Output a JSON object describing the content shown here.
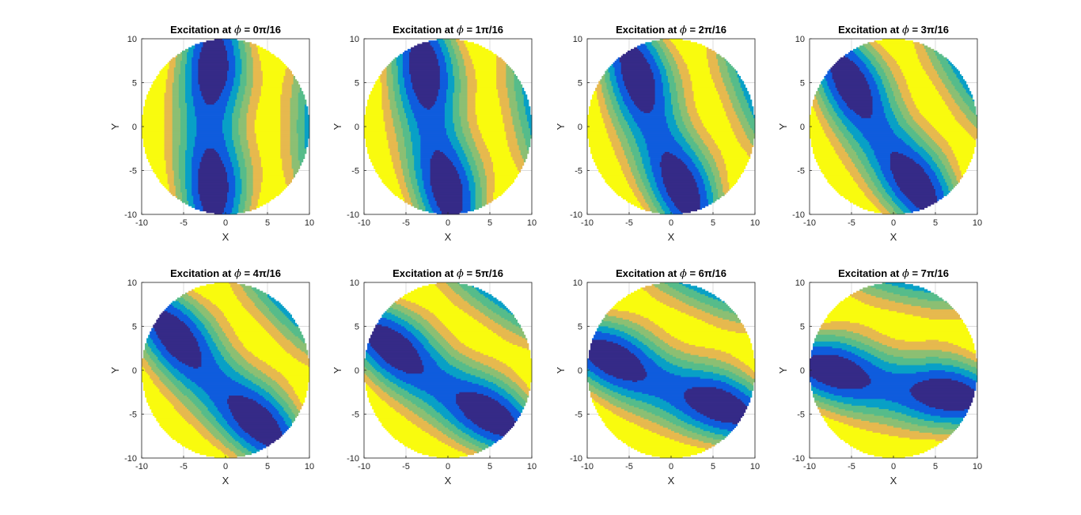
{
  "figure": {
    "rows": 2,
    "cols": 4
  },
  "chart_data": [
    {
      "type": "heatmap",
      "title_prefix": "Excitation at ",
      "title_symbol": "ϕ",
      "title_suffix": " = 0π/16",
      "phase_index": 0,
      "xlabel": "X",
      "ylabel": "Y",
      "xlim": [
        -10,
        10
      ],
      "ylim": [
        -10,
        10
      ],
      "xticks": [
        "-10",
        "-5",
        "0",
        "5",
        "10"
      ],
      "yticks": [
        "10",
        "5",
        "0",
        "-5",
        "-10"
      ],
      "grid": true,
      "disk_radius": 10
    },
    {
      "type": "heatmap",
      "title_prefix": "Excitation at ",
      "title_symbol": "ϕ",
      "title_suffix": " = 1π/16",
      "phase_index": 1,
      "xlabel": "X",
      "ylabel": "Y",
      "xlim": [
        -10,
        10
      ],
      "ylim": [
        -10,
        10
      ],
      "xticks": [
        "-10",
        "-5",
        "0",
        "5",
        "10"
      ],
      "yticks": [
        "10",
        "5",
        "0",
        "-5",
        "-10"
      ],
      "grid": true,
      "disk_radius": 10
    },
    {
      "type": "heatmap",
      "title_prefix": "Excitation at ",
      "title_symbol": "ϕ",
      "title_suffix": " = 2π/16",
      "phase_index": 2,
      "xlabel": "X",
      "ylabel": "Y",
      "xlim": [
        -10,
        10
      ],
      "ylim": [
        -10,
        10
      ],
      "xticks": [
        "-10",
        "-5",
        "0",
        "5",
        "10"
      ],
      "yticks": [
        "10",
        "5",
        "0",
        "-5",
        "-10"
      ],
      "grid": true,
      "disk_radius": 10
    },
    {
      "type": "heatmap",
      "title_prefix": "Excitation at ",
      "title_symbol": "ϕ",
      "title_suffix": " = 3π/16",
      "phase_index": 3,
      "xlabel": "X",
      "ylabel": "Y",
      "xlim": [
        -10,
        10
      ],
      "ylim": [
        -10,
        10
      ],
      "xticks": [
        "-10",
        "-5",
        "0",
        "5",
        "10"
      ],
      "yticks": [
        "10",
        "5",
        "0",
        "-5",
        "-10"
      ],
      "grid": true,
      "disk_radius": 10
    },
    {
      "type": "heatmap",
      "title_prefix": "Excitation at ",
      "title_symbol": "ϕ",
      "title_suffix": " = 4π/16",
      "phase_index": 4,
      "xlabel": "X",
      "ylabel": "Y",
      "xlim": [
        -10,
        10
      ],
      "ylim": [
        -10,
        10
      ],
      "xticks": [
        "-10",
        "-5",
        "0",
        "5",
        "10"
      ],
      "yticks": [
        "10",
        "5",
        "0",
        "-5",
        "-10"
      ],
      "grid": true,
      "disk_radius": 10
    },
    {
      "type": "heatmap",
      "title_prefix": "Excitation at ",
      "title_symbol": "ϕ",
      "title_suffix": " = 5π/16",
      "phase_index": 5,
      "xlabel": "X",
      "ylabel": "Y",
      "xlim": [
        -10,
        10
      ],
      "ylim": [
        -10,
        10
      ],
      "xticks": [
        "-10",
        "-5",
        "0",
        "5",
        "10"
      ],
      "yticks": [
        "10",
        "5",
        "0",
        "-5",
        "-10"
      ],
      "grid": true,
      "disk_radius": 10
    },
    {
      "type": "heatmap",
      "title_prefix": "Excitation at ",
      "title_symbol": "ϕ",
      "title_suffix": " = 6π/16",
      "phase_index": 6,
      "xlabel": "X",
      "ylabel": "Y",
      "xlim": [
        -10,
        10
      ],
      "ylim": [
        -10,
        10
      ],
      "xticks": [
        "-10",
        "-5",
        "0",
        "5",
        "10"
      ],
      "yticks": [
        "10",
        "5",
        "0",
        "-5",
        "-10"
      ],
      "grid": true,
      "disk_radius": 10
    },
    {
      "type": "heatmap",
      "title_prefix": "Excitation at ",
      "title_symbol": "ϕ",
      "title_suffix": " = 7π/16",
      "phase_index": 7,
      "xlabel": "X",
      "ylabel": "Y",
      "xlim": [
        -10,
        10
      ],
      "ylim": [
        -10,
        10
      ],
      "xticks": [
        "-10",
        "-5",
        "0",
        "5",
        "10"
      ],
      "yticks": [
        "10",
        "5",
        "0",
        "-5",
        "-10"
      ],
      "grid": true,
      "disk_radius": 10
    }
  ],
  "colormap": [
    "#352a87",
    "#2c3bb0",
    "#0f5cdd",
    "#1283d4",
    "#08a0c6",
    "#1fb1ad",
    "#56bc8a",
    "#8cbf73",
    "#bbbc5f",
    "#e6b94e",
    "#fcce2e",
    "#f9fb0e"
  ]
}
